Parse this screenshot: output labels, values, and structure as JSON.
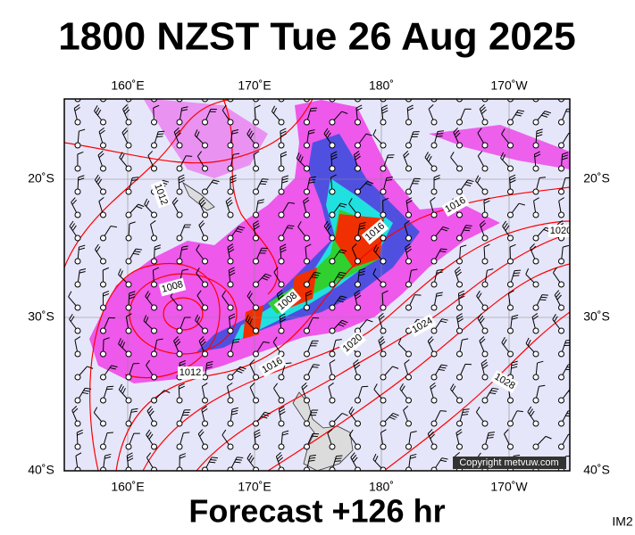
{
  "header": {
    "title": "1800 NZST Tue 26 Aug 2025"
  },
  "map": {
    "lon_labels": [
      "160˚E",
      "170˚E",
      "180˚",
      "170˚W"
    ],
    "lat_labels": [
      "20˚S",
      "30˚S",
      "40˚S"
    ],
    "isobar_labels": [
      "1012",
      "1016",
      "1020",
      "1016",
      "1008",
      "1008",
      "1012",
      "1016",
      "1020",
      "1024",
      "1028"
    ],
    "copyright": "Copyright metvuw.com"
  },
  "footer": {
    "forecast": "Forecast +126 hr",
    "product": "IM2"
  }
}
